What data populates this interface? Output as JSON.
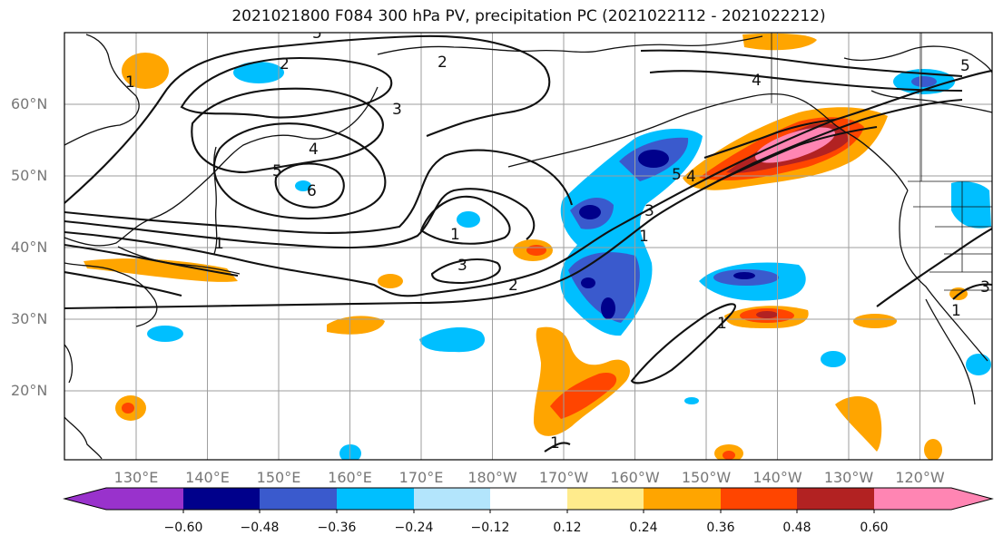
{
  "title": "2021021800 F084 300 hPa PV, precipitation PC (2021022112 - 2021022212)",
  "map": {
    "lat_labels": [
      "60°N",
      "50°N",
      "40°N",
      "30°N",
      "20°N"
    ],
    "lon_labels": [
      "130°E",
      "140°E",
      "150°E",
      "160°E",
      "170°E",
      "180°W",
      "170°W",
      "160°W",
      "150°W",
      "140°W",
      "130°W",
      "120°W"
    ],
    "contour_labels": [
      "5",
      "2",
      "2",
      "3",
      "4",
      "5",
      "6",
      "1",
      "3",
      "2",
      "1",
      "3",
      "5",
      "4",
      "1",
      "4",
      "5",
      "3",
      "1",
      "1",
      "1",
      "1"
    ]
  },
  "colorbar": {
    "ticks": [
      "−0.60",
      "−0.48",
      "−0.36",
      "−0.24",
      "−0.12",
      "0.12",
      "0.24",
      "0.36",
      "0.48",
      "0.60"
    ],
    "colors": [
      "#9932cc",
      "#00008b",
      "#3a5acd",
      "#00bfff",
      "#b3e5fc",
      "#ffffff",
      "#ffeb8c",
      "#ffa500",
      "#ff4500",
      "#b22222",
      "#ff85b3"
    ]
  }
}
